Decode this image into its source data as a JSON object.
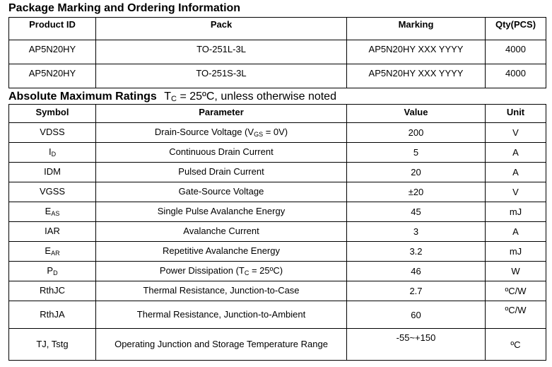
{
  "ordering": {
    "title": "Package Marking and Ordering Information",
    "headers": [
      "Product ID",
      "Pack",
      "Marking",
      "Qty(PCS)"
    ],
    "rows": [
      [
        "AP5N20HY",
        "TO-251L-3L",
        "AP5N20HY XXX YYYY",
        "4000"
      ],
      [
        "AP5N20HY",
        "TO-251S-3L",
        "AP5N20HY XXX YYYY",
        "4000"
      ]
    ]
  },
  "ratings": {
    "title": "Absolute Maximum Ratings",
    "condition_prefix": "T",
    "condition_sub": "C",
    "condition_rest": " = 25ºC, unless otherwise noted",
    "headers": [
      "Symbol",
      "Parameter",
      "Value",
      "Unit"
    ],
    "rows": [
      {
        "sym": "VDSS",
        "sym_sub": "",
        "param": "Drain-Source Voltage (V",
        "param_sub": "GS",
        "param_rest": " = 0V)",
        "value": "200",
        "unit": "V"
      },
      {
        "sym": "I",
        "sym_sub": "D",
        "param": "Continuous Drain Current",
        "param_sub": "",
        "param_rest": "",
        "value": "5",
        "unit": "A"
      },
      {
        "sym": "IDM",
        "sym_sub": "",
        "param": "Pulsed Drain Current",
        "param_sub": "",
        "param_rest": "",
        "value": "20",
        "unit": "A"
      },
      {
        "sym": "VGSS",
        "sym_sub": "",
        "param": "Gate-Source Voltage",
        "param_sub": "",
        "param_rest": "",
        "value": "±20",
        "unit": "V"
      },
      {
        "sym": "E",
        "sym_sub": "AS",
        "param": "Single Pulse Avalanche Energy",
        "param_sub": "",
        "param_rest": "",
        "value": "45",
        "unit": "mJ"
      },
      {
        "sym": "IAR",
        "sym_sub": "",
        "param": "Avalanche Current",
        "param_sub": "",
        "param_rest": "",
        "value": "3",
        "unit": "A"
      },
      {
        "sym": "E",
        "sym_sub": "AR",
        "param": "Repetitive Avalanche Energy",
        "param_sub": "",
        "param_rest": "",
        "value": "3.2",
        "unit": "mJ"
      },
      {
        "sym": "P",
        "sym_sub": "D",
        "param": "Power Dissipation (T",
        "param_sub": "C",
        "param_rest": " = 25ºC)",
        "value": "46",
        "unit": "W"
      },
      {
        "sym": "RthJC",
        "sym_sub": "",
        "param": "Thermal Resistance, Junction-to-Case",
        "param_sub": "",
        "param_rest": "",
        "value": "2.7",
        "unit": "ºC/W"
      },
      {
        "sym": "RthJA",
        "sym_sub": "",
        "param": "Thermal Resistance, Junction-to-Ambient",
        "param_sub": "",
        "param_rest": "",
        "value": "60",
        "unit": "ºC/W"
      },
      {
        "sym": "TJ, Tstg",
        "sym_sub": "",
        "param": "Operating Junction and Storage Temperature Range",
        "param_sub": "",
        "param_rest": "",
        "value": "-55~+150",
        "unit": "ºC"
      }
    ]
  }
}
